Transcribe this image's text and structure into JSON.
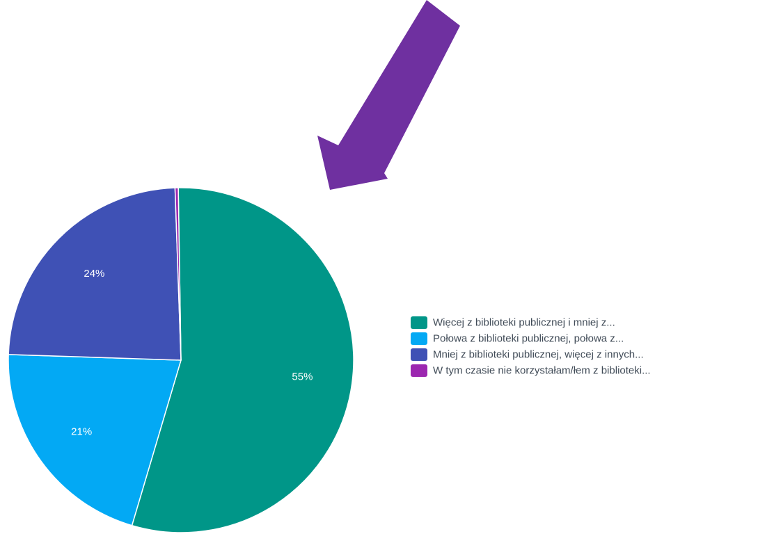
{
  "chart_data": {
    "type": "pie",
    "slices": [
      {
        "label": "Więcej z biblioteki publicznej i mniej z...",
        "value": 55,
        "value_label": "55%",
        "color": "#009688"
      },
      {
        "label": "Połowa z biblioteki publicznej, połowa z...",
        "value": 21,
        "value_label": "21%",
        "color": "#03a9f4"
      },
      {
        "label": "Mniej z biblioteki publicznej, więcej z innych...",
        "value": 24,
        "value_label": "24%",
        "color": "#3f51b5"
      },
      {
        "label": "W tym czasie nie korzystałam/łem z biblioteki...",
        "value": 0.3,
        "value_label": "",
        "color": "#9c27b0"
      }
    ],
    "legend_position": "right"
  },
  "annotation": {
    "type": "arrow",
    "color": "#6f30a0",
    "points_to": "pie-chart"
  }
}
